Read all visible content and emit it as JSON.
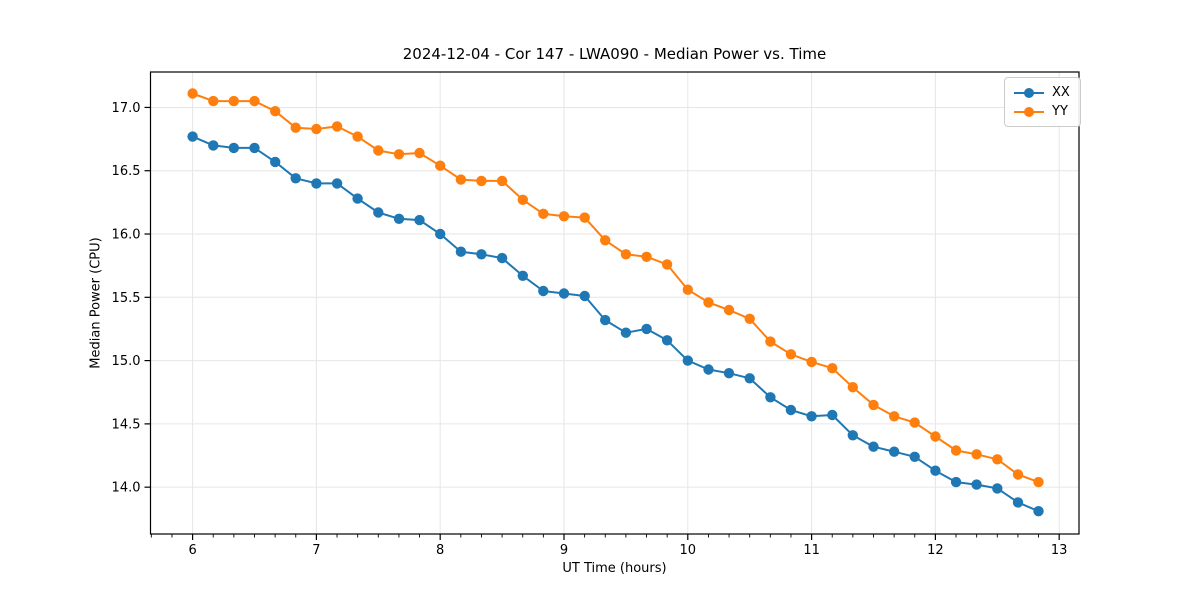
{
  "chart_data": {
    "type": "line",
    "title": "2024-12-04 - Cor 147 - LWA090 - Median Power vs. Time",
    "xlabel": "UT Time (hours)",
    "ylabel": "Median Power (CPU)",
    "xlim": [
      5.66,
      13.16
    ],
    "ylim": [
      13.63,
      17.28
    ],
    "xticks": [
      6,
      7,
      8,
      9,
      10,
      11,
      12,
      13
    ],
    "yticks": [
      14.0,
      14.5,
      15.0,
      15.5,
      16.0,
      16.5,
      17.0
    ],
    "x_minor_per_major": 6,
    "grid": true,
    "grid_color": "#e6e6e6",
    "legend_position": "upper right",
    "x": [
      6.0,
      6.167,
      6.333,
      6.5,
      6.667,
      6.833,
      7.0,
      7.167,
      7.333,
      7.5,
      7.667,
      7.833,
      8.0,
      8.167,
      8.333,
      8.5,
      8.667,
      8.833,
      9.0,
      9.167,
      9.333,
      9.5,
      9.667,
      9.833,
      10.0,
      10.167,
      10.333,
      10.5,
      10.667,
      10.833,
      11.0,
      11.167,
      11.333,
      11.5,
      11.667,
      11.833,
      12.0,
      12.167,
      12.333,
      12.5,
      12.667,
      12.833
    ],
    "series": [
      {
        "name": "XX",
        "color": "#1f77b4",
        "values": [
          16.77,
          16.7,
          16.68,
          16.68,
          16.57,
          16.44,
          16.4,
          16.4,
          16.28,
          16.17,
          16.12,
          16.11,
          16.0,
          15.86,
          15.84,
          15.81,
          15.67,
          15.55,
          15.53,
          15.51,
          15.32,
          15.22,
          15.25,
          15.16,
          15.0,
          14.93,
          14.9,
          14.86,
          14.71,
          14.61,
          14.56,
          14.57,
          14.41,
          14.32,
          14.28,
          14.24,
          14.13,
          14.04,
          14.02,
          13.99,
          13.88,
          13.81
        ]
      },
      {
        "name": "YY",
        "color": "#ff7f0e",
        "values": [
          17.11,
          17.05,
          17.05,
          17.05,
          16.97,
          16.84,
          16.83,
          16.85,
          16.77,
          16.66,
          16.63,
          16.64,
          16.54,
          16.43,
          16.42,
          16.42,
          16.27,
          16.16,
          16.14,
          16.13,
          15.95,
          15.84,
          15.82,
          15.76,
          15.56,
          15.46,
          15.4,
          15.33,
          15.15,
          15.05,
          14.99,
          14.94,
          14.79,
          14.65,
          14.56,
          14.51,
          14.4,
          14.29,
          14.26,
          14.22,
          14.1,
          14.04
        ]
      }
    ]
  }
}
